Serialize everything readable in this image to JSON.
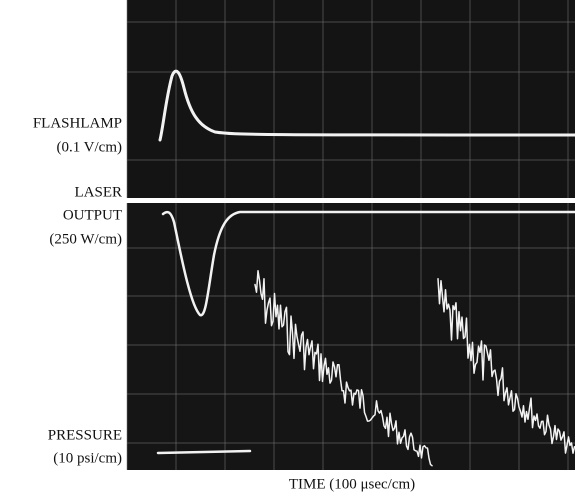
{
  "labels": [
    {
      "lines": [
        "FLASHLAMP",
        "(0.1 V/cm)"
      ]
    },
    {
      "lines": [
        "LASER",
        "OUTPUT",
        "(250 W/cm)"
      ]
    },
    {
      "lines": [
        "PRESSURE",
        "(10 psi/cm)"
      ]
    }
  ],
  "x_axis_label": "TIME (100 μsec/cm)"
}
